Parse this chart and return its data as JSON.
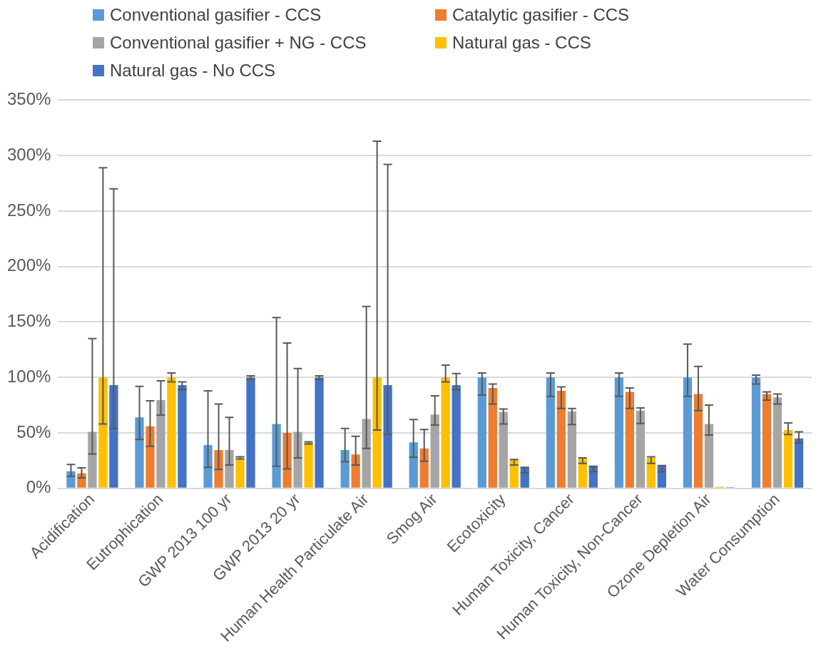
{
  "chart_data": {
    "type": "bar",
    "categories": [
      "Acidification",
      "Eutrophication",
      "GWP 2013 100 yr",
      "GWP 2013 20 yr",
      "Human Health Particulate Air",
      "Smog Air",
      "Ecotoxicity",
      "Human Toxicity, Cancer",
      "Human Toxicity, Non-Cancer",
      "Ozone Depletion Air",
      "Water Consumption"
    ],
    "series": [
      {
        "name": "Conventional gasifier - CCS",
        "color": "#5b9bd5",
        "values": [
          15.5,
          64,
          39,
          58,
          34.5,
          41.5,
          100,
          100,
          100,
          100,
          100
        ],
        "errors": [
          [
            11,
            21.5
          ],
          [
            44,
            92
          ],
          [
            19,
            88
          ],
          [
            20,
            154
          ],
          [
            24,
            54
          ],
          [
            28,
            62
          ],
          [
            84,
            104
          ],
          [
            83,
            104
          ],
          [
            83,
            104
          ],
          [
            83,
            130
          ],
          [
            94,
            102
          ]
        ]
      },
      {
        "name": "Catalytic gasifier - CCS",
        "color": "#ed7d31",
        "values": [
          13.5,
          56,
          34.5,
          50,
          30.5,
          36,
          90.5,
          88,
          87,
          85,
          85
        ],
        "errors": [
          [
            9.5,
            18.5
          ],
          [
            38,
            79
          ],
          [
            17,
            76
          ],
          [
            17.5,
            131
          ],
          [
            21,
            47
          ],
          [
            24.5,
            53
          ],
          [
            76,
            94
          ],
          [
            72,
            91.5
          ],
          [
            72,
            90.5
          ],
          [
            70,
            110
          ],
          [
            79.5,
            87
          ]
        ]
      },
      {
        "name": "Conventional gasifier + NG - CCS",
        "color": "#a5a5a5",
        "values": [
          51,
          79.5,
          34.5,
          51,
          62.5,
          66.5,
          69,
          69.5,
          70,
          58,
          82
        ],
        "errors": [
          [
            31,
            135
          ],
          [
            66,
            97
          ],
          [
            21,
            64
          ],
          [
            27.5,
            108
          ],
          [
            36,
            164
          ],
          [
            57,
            83.5
          ],
          [
            58,
            71.5
          ],
          [
            57.5,
            72
          ],
          [
            58.5,
            72.5
          ],
          [
            48,
            75
          ],
          [
            76,
            85
          ]
        ]
      },
      {
        "name": "Natural gas - CCS",
        "color": "#ffc000",
        "values": [
          100,
          100,
          27,
          41,
          100,
          100,
          25.5,
          27,
          27.5,
          1.5,
          52.5
        ],
        "errors": [
          [
            58,
            289
          ],
          [
            96,
            104
          ],
          [
            26.5,
            28.5
          ],
          [
            40,
            42
          ],
          [
            52.5,
            313
          ],
          [
            96,
            111
          ],
          [
            21,
            26
          ],
          [
            22.5,
            27.5
          ],
          [
            22.5,
            28.5
          ],
          null,
          [
            48.5,
            59
          ]
        ]
      },
      {
        "name": "Natural gas - No CCS",
        "color": "#4472c4",
        "values": [
          93,
          93,
          100,
          100,
          93,
          93,
          19,
          20,
          20.5,
          1,
          45
        ],
        "errors": [
          [
            54,
            270
          ],
          [
            89,
            96
          ],
          [
            98,
            101.5
          ],
          [
            98,
            101.5
          ],
          [
            48.5,
            292
          ],
          [
            89,
            103.5
          ],
          [
            14,
            19
          ],
          [
            15,
            20
          ],
          [
            15,
            20.5
          ],
          null,
          [
            41,
            51
          ]
        ]
      }
    ],
    "ylim": [
      0,
      350
    ],
    "yticks": [
      {
        "value": 0,
        "label": "0%"
      },
      {
        "value": 50,
        "label": "50%"
      },
      {
        "value": 100,
        "label": "100%"
      },
      {
        "value": 150,
        "label": "150%"
      },
      {
        "value": 200,
        "label": "200%"
      },
      {
        "value": 250,
        "label": "250%"
      },
      {
        "value": 300,
        "label": "300%"
      },
      {
        "value": 350,
        "label": "350%"
      }
    ],
    "grid": "y",
    "legend": "top"
  }
}
